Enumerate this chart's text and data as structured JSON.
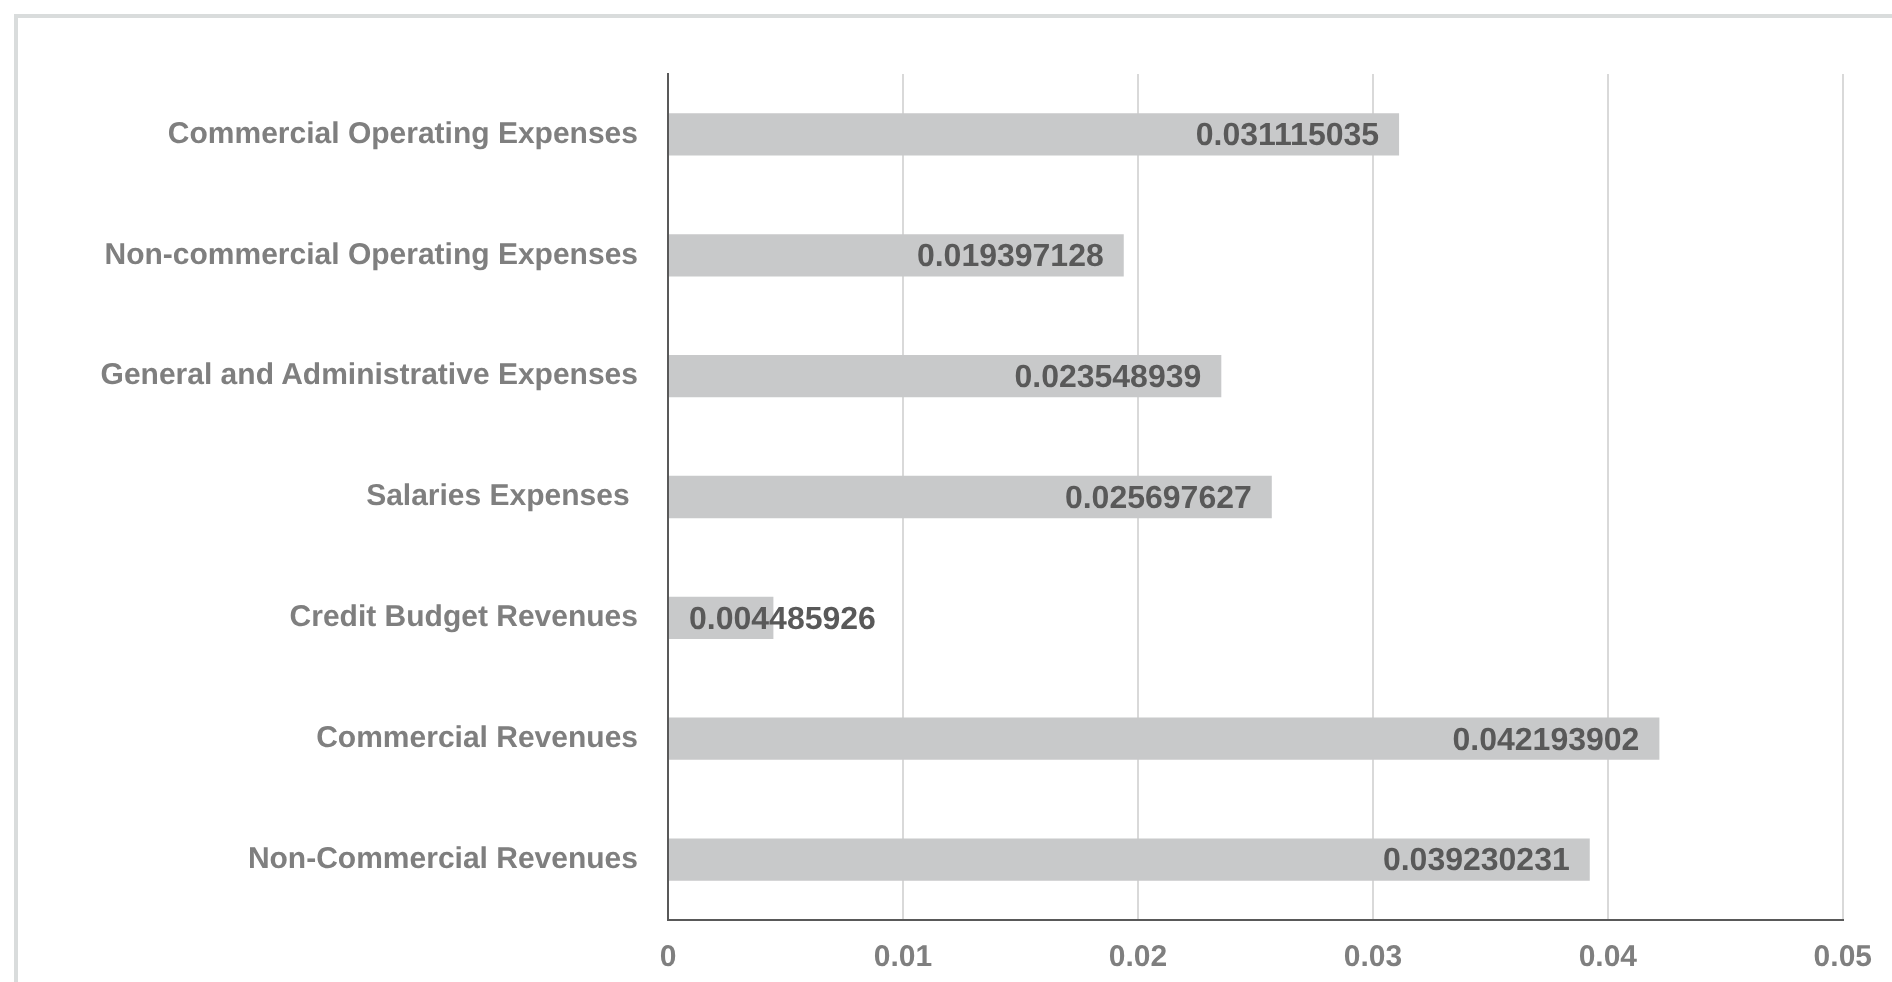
{
  "chart_data": {
    "type": "bar",
    "orientation": "horizontal",
    "categories": [
      "Commercial Operating Expenses",
      "Non-commercial Operating Expenses",
      "General and Administrative Expenses",
      "Salaries Expenses ",
      "Credit Budget Revenues",
      "Commercial Revenues",
      "Non-Commercial Revenues"
    ],
    "values": [
      0.031115035,
      0.019397128,
      0.023548939,
      0.025697627,
      0.004485926,
      0.042193902,
      0.039230231
    ],
    "color": "#c8c9ca",
    "xlim": [
      0,
      0.05
    ],
    "xticks": [
      0,
      0.01,
      0.02,
      0.03,
      0.04,
      0.05
    ],
    "grid": "x",
    "data_labels": true,
    "legend": false
  }
}
